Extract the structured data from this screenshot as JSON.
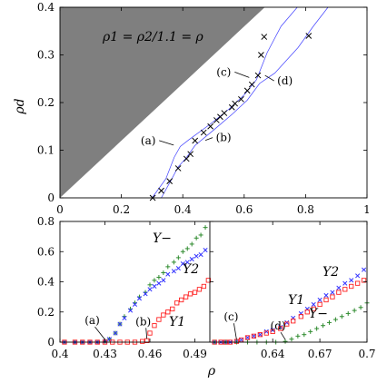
{
  "chart_data": [
    {
      "type": "scatter",
      "title": "",
      "annotation": "ρ1 = ρ2/1.1 = ρ",
      "xlabel": "",
      "ylabel": "ρd",
      "xlim": [
        0,
        1
      ],
      "ylim": [
        0,
        0.4
      ],
      "xticks": [
        "0",
        "0.2",
        "0.4",
        "0.6",
        "0.8",
        "1"
      ],
      "yticks": [
        "0",
        "0.1",
        "0.2",
        "0.3",
        "0.4"
      ],
      "shaded_region": {
        "description": "excluded region above line ρd = 0.6ρ",
        "color": "#7f7f7f",
        "boundary": [
          [
            0,
            0
          ],
          [
            0.667,
            0.4
          ]
        ]
      },
      "series": [
        {
          "values": [
            [
              0.302,
              0
            ],
            [
              0.33,
              0.015
            ],
            [
              0.357,
              0.035
            ],
            [
              0.385,
              0.062
            ],
            [
              0.412,
              0.082
            ],
            [
              0.425,
              0.092
            ],
            [
              0.44,
              0.12
            ],
            [
              0.468,
              0.137
            ],
            [
              0.49,
              0.15
            ],
            [
              0.51,
              0.163
            ],
            [
              0.522,
              0.17
            ],
            [
              0.535,
              0.178
            ],
            [
              0.56,
              0.19
            ],
            [
              0.57,
              0.198
            ],
            [
              0.59,
              0.207
            ],
            [
              0.61,
              0.225
            ],
            [
              0.625,
              0.238
            ],
            [
              0.645,
              0.257
            ],
            [
              0.655,
              0.3
            ],
            [
              0.665,
              0.338
            ],
            [
              0.81,
              0.34
            ]
          ],
          "color": "#000000"
        }
      ],
      "lines": [
        {
          "color": "#4040ff",
          "points": [
            [
              0.3,
              0
            ],
            [
              0.345,
              0.04
            ],
            [
              0.372,
              0.085
            ],
            [
              0.392,
              0.108
            ],
            [
              0.42,
              0.122
            ],
            [
              0.49,
              0.155
            ],
            [
              0.55,
              0.186
            ],
            [
              0.6,
              0.216
            ],
            [
              0.64,
              0.248
            ],
            [
              0.675,
              0.305
            ],
            [
              0.72,
              0.36
            ],
            [
              0.773,
              0.4
            ]
          ]
        },
        {
          "color": "#4040ff",
          "points": [
            [
              0.33,
              0
            ],
            [
              0.362,
              0.037
            ],
            [
              0.385,
              0.065
            ],
            [
              0.41,
              0.083
            ],
            [
              0.44,
              0.11
            ],
            [
              0.5,
              0.142
            ],
            [
              0.56,
              0.175
            ],
            [
              0.61,
              0.205
            ],
            [
              0.65,
              0.24
            ],
            [
              0.7,
              0.262
            ],
            [
              0.775,
              0.315
            ],
            [
              0.825,
              0.36
            ],
            [
              0.873,
              0.4
            ]
          ]
        }
      ],
      "point_labels": [
        {
          "text": "(a)",
          "at": [
            0.4,
            0.105
          ]
        },
        {
          "text": "(b)",
          "at": [
            0.45,
            0.115
          ]
        },
        {
          "text": "(c)",
          "at": [
            0.64,
            0.245
          ]
        },
        {
          "text": "(d)",
          "at": [
            0.65,
            0.257
          ]
        }
      ]
    },
    {
      "type": "scatter",
      "xlabel": "ρ",
      "ylabel": "",
      "ylim": [
        0,
        0.8
      ],
      "yticks": [
        "0",
        "0.2",
        "0.4",
        "0.6",
        "0.8"
      ],
      "panels": [
        {
          "xlim": [
            0.4,
            0.5
          ],
          "xticks": [
            0.4,
            0.43,
            0.46,
            0.49
          ],
          "xtick_labels": [
            "0.4",
            "0.43",
            "0.46",
            "0.49"
          ],
          "series": [
            {
              "name": "Υ−",
              "marker": "plus",
              "color": "#2e8b2e",
              "values": [
                [
                  0.403,
                  0
                ],
                [
                  0.41,
                  0
                ],
                [
                  0.415,
                  0
                ],
                [
                  0.42,
                  0
                ],
                [
                  0.425,
                  0
                ],
                [
                  0.43,
                  0.005
                ],
                [
                  0.433,
                  0.02
                ],
                [
                  0.437,
                  0.06
                ],
                [
                  0.44,
                  0.12
                ],
                [
                  0.443,
                  0.17
                ],
                [
                  0.447,
                  0.22
                ],
                [
                  0.45,
                  0.26
                ],
                [
                  0.453,
                  0.3
                ],
                [
                  0.457,
                  0.33
                ],
                [
                  0.46,
                  0.38
                ],
                [
                  0.463,
                  0.41
                ],
                [
                  0.466,
                  0.43
                ],
                [
                  0.469,
                  0.46
                ],
                [
                  0.472,
                  0.5
                ],
                [
                  0.476,
                  0.53
                ],
                [
                  0.479,
                  0.56
                ],
                [
                  0.482,
                  0.6
                ],
                [
                  0.485,
                  0.62
                ],
                [
                  0.488,
                  0.65
                ],
                [
                  0.491,
                  0.69
                ],
                [
                  0.494,
                  0.71
                ],
                [
                  0.497,
                  0.76
                ]
              ]
            },
            {
              "name": "Υ2",
              "marker": "x",
              "color": "#3333ff",
              "values": [
                [
                  0.403,
                  0
                ],
                [
                  0.41,
                  0
                ],
                [
                  0.415,
                  0
                ],
                [
                  0.42,
                  0
                ],
                [
                  0.425,
                  0
                ],
                [
                  0.43,
                  0.005
                ],
                [
                  0.433,
                  0.02
                ],
                [
                  0.437,
                  0.06
                ],
                [
                  0.44,
                  0.12
                ],
                [
                  0.443,
                  0.16
                ],
                [
                  0.447,
                  0.21
                ],
                [
                  0.45,
                  0.25
                ],
                [
                  0.453,
                  0.29
                ],
                [
                  0.457,
                  0.32
                ],
                [
                  0.46,
                  0.35
                ],
                [
                  0.463,
                  0.37
                ],
                [
                  0.466,
                  0.39
                ],
                [
                  0.469,
                  0.41
                ],
                [
                  0.472,
                  0.45
                ],
                [
                  0.476,
                  0.47
                ],
                [
                  0.479,
                  0.49
                ],
                [
                  0.482,
                  0.52
                ],
                [
                  0.485,
                  0.53
                ],
                [
                  0.488,
                  0.55
                ],
                [
                  0.491,
                  0.57
                ],
                [
                  0.494,
                  0.58
                ],
                [
                  0.497,
                  0.61
                ]
              ]
            },
            {
              "name": "Υ1",
              "marker": "square",
              "color": "#ff2222",
              "values": [
                [
                  0.403,
                  0
                ],
                [
                  0.41,
                  0
                ],
                [
                  0.415,
                  0
                ],
                [
                  0.42,
                  0
                ],
                [
                  0.425,
                  0
                ],
                [
                  0.43,
                  0
                ],
                [
                  0.435,
                  0
                ],
                [
                  0.44,
                  0
                ],
                [
                  0.445,
                  0
                ],
                [
                  0.45,
                  0
                ],
                [
                  0.455,
                  0.005
                ],
                [
                  0.458,
                  0.01
                ],
                [
                  0.46,
                  0.06
                ],
                [
                  0.463,
                  0.11
                ],
                [
                  0.466,
                  0.15
                ],
                [
                  0.469,
                  0.18
                ],
                [
                  0.472,
                  0.2
                ],
                [
                  0.475,
                  0.22
                ],
                [
                  0.478,
                  0.26
                ],
                [
                  0.481,
                  0.28
                ],
                [
                  0.484,
                  0.3
                ],
                [
                  0.487,
                  0.32
                ],
                [
                  0.49,
                  0.33
                ],
                [
                  0.493,
                  0.35
                ],
                [
                  0.496,
                  0.37
                ],
                [
                  0.499,
                  0.41
                ]
              ]
            }
          ]
        },
        {
          "xlim": [
            0.6,
            0.7
          ],
          "xticks": [
            0.64,
            0.67,
            0.7
          ],
          "xtick_labels": [
            "0.64",
            "0.67",
            "0.7"
          ],
          "series": [
            {
              "name": "Υ2",
              "marker": "x",
              "color": "#3333ff",
              "values": [
                [
                  0.603,
                  0
                ],
                [
                  0.607,
                  0
                ],
                [
                  0.61,
                  0
                ],
                [
                  0.613,
                  0
                ],
                [
                  0.617,
                  0.005
                ],
                [
                  0.62,
                  0.015
                ],
                [
                  0.624,
                  0.03
                ],
                [
                  0.628,
                  0.04
                ],
                [
                  0.632,
                  0.05
                ],
                [
                  0.636,
                  0.07
                ],
                [
                  0.64,
                  0.08
                ],
                [
                  0.645,
                  0.1
                ],
                [
                  0.649,
                  0.13
                ],
                [
                  0.653,
                  0.16
                ],
                [
                  0.658,
                  0.19
                ],
                [
                  0.662,
                  0.22
                ],
                [
                  0.666,
                  0.25
                ],
                [
                  0.67,
                  0.28
                ],
                [
                  0.674,
                  0.31
                ],
                [
                  0.678,
                  0.33
                ],
                [
                  0.682,
                  0.36
                ],
                [
                  0.686,
                  0.39
                ],
                [
                  0.69,
                  0.41
                ],
                [
                  0.694,
                  0.44
                ],
                [
                  0.698,
                  0.48
                ]
              ]
            },
            {
              "name": "Υ1",
              "marker": "square",
              "color": "#ff2222",
              "values": [
                [
                  0.603,
                  0
                ],
                [
                  0.607,
                  0
                ],
                [
                  0.61,
                  0
                ],
                [
                  0.613,
                  0
                ],
                [
                  0.617,
                  0.005
                ],
                [
                  0.62,
                  0.015
                ],
                [
                  0.624,
                  0.03
                ],
                [
                  0.628,
                  0.04
                ],
                [
                  0.632,
                  0.05
                ],
                [
                  0.636,
                  0.06
                ],
                [
                  0.64,
                  0.07
                ],
                [
                  0.645,
                  0.09
                ],
                [
                  0.649,
                  0.12
                ],
                [
                  0.653,
                  0.14
                ],
                [
                  0.658,
                  0.17
                ],
                [
                  0.662,
                  0.2
                ],
                [
                  0.666,
                  0.22
                ],
                [
                  0.67,
                  0.25
                ],
                [
                  0.674,
                  0.28
                ],
                [
                  0.678,
                  0.3
                ],
                [
                  0.682,
                  0.33
                ],
                [
                  0.686,
                  0.35
                ],
                [
                  0.69,
                  0.37
                ],
                [
                  0.694,
                  0.39
                ],
                [
                  0.698,
                  0.41
                ]
              ]
            },
            {
              "name": "Υ−",
              "marker": "plus",
              "color": "#2e8b2e",
              "values": [
                [
                  0.603,
                  0
                ],
                [
                  0.61,
                  0
                ],
                [
                  0.617,
                  0
                ],
                [
                  0.624,
                  0
                ],
                [
                  0.63,
                  0
                ],
                [
                  0.636,
                  0
                ],
                [
                  0.642,
                  0
                ],
                [
                  0.648,
                  0.005
                ],
                [
                  0.652,
                  0.02
                ],
                [
                  0.656,
                  0.04
                ],
                [
                  0.66,
                  0.05
                ],
                [
                  0.664,
                  0.07
                ],
                [
                  0.668,
                  0.09
                ],
                [
                  0.672,
                  0.11
                ],
                [
                  0.676,
                  0.13
                ],
                [
                  0.68,
                  0.15
                ],
                [
                  0.684,
                  0.17
                ],
                [
                  0.688,
                  0.19
                ],
                [
                  0.692,
                  0.21
                ],
                [
                  0.696,
                  0.23
                ],
                [
                  0.7,
                  0.26
                ]
              ]
            }
          ]
        }
      ],
      "labels": {
        "ups_minus": "Υ−",
        "ups_2": "Υ2",
        "ups_1": "Υ1"
      },
      "point_labels": [
        {
          "text": "(a)",
          "panel": 0,
          "at": [
            0.43,
            0.005
          ]
        },
        {
          "text": "(b)",
          "panel": 0,
          "at": [
            0.458,
            0.01
          ]
        },
        {
          "text": "(c)",
          "panel": 1,
          "at": [
            0.617,
            0.005
          ]
        },
        {
          "text": "(d)",
          "panel": 1,
          "at": [
            0.648,
            0.005
          ]
        }
      ]
    }
  ]
}
